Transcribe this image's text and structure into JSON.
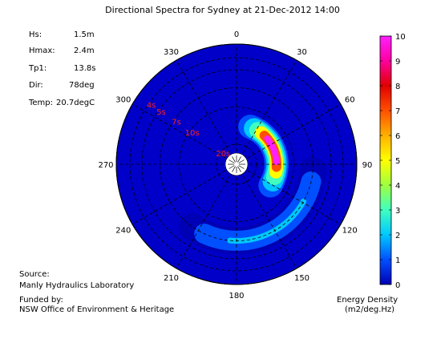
{
  "title": "Directional Spectra for Sydney at 21-Dec-2012 14:00",
  "stats": [
    {
      "label": "Hs:",
      "value": "1.5m"
    },
    {
      "label": "Hmax:",
      "value": "2.4m"
    },
    {
      "label": "Tp1:",
      "value": "13.8s"
    },
    {
      "label": "Dir:",
      "value": "78deg"
    },
    {
      "label": "Temp:",
      "value": "20.7degC"
    }
  ],
  "source": {
    "label": "Source:",
    "value": "Manly Hydraulics Laboratory"
  },
  "funding": {
    "label": "Funded by:",
    "value": "NSW Office of Environment & Heritage"
  },
  "colorbar": {
    "label_line1": "Energy Density",
    "label_line2": "(m2/deg.Hz)",
    "ticks": [
      0,
      1,
      2,
      3,
      4,
      5,
      6,
      7,
      8,
      9,
      10
    ],
    "range": [
      0,
      10
    ],
    "colormap": [
      "#0000b4",
      "#0050ff",
      "#00c8ff",
      "#40ffc0",
      "#a0ff40",
      "#ffff00",
      "#ffb000",
      "#ff5000",
      "#e00000",
      "#ff00a0",
      "#ff20ff"
    ]
  },
  "chart_data": {
    "type": "polar-contour",
    "direction_ticks": [
      "0",
      "30",
      "60",
      "90",
      "120",
      "150",
      "180",
      "210",
      "240",
      "270",
      "300",
      "330"
    ],
    "period_rings": [
      "4s",
      "5s",
      "7s",
      "10s",
      "20s"
    ],
    "period_ring_values_s": [
      4,
      5,
      7,
      10,
      20
    ],
    "energy_features": [
      {
        "name": "primary swell peak",
        "direction_deg": 72,
        "period_s": 13.8,
        "peak_energy": 9.5
      },
      {
        "name": "secondary swell arc",
        "direction_start_deg": 95,
        "direction_end_deg": 215,
        "period_s": 7,
        "peak_energy": 1.8
      }
    ],
    "grid": true,
    "background_color": "#0000c8"
  }
}
